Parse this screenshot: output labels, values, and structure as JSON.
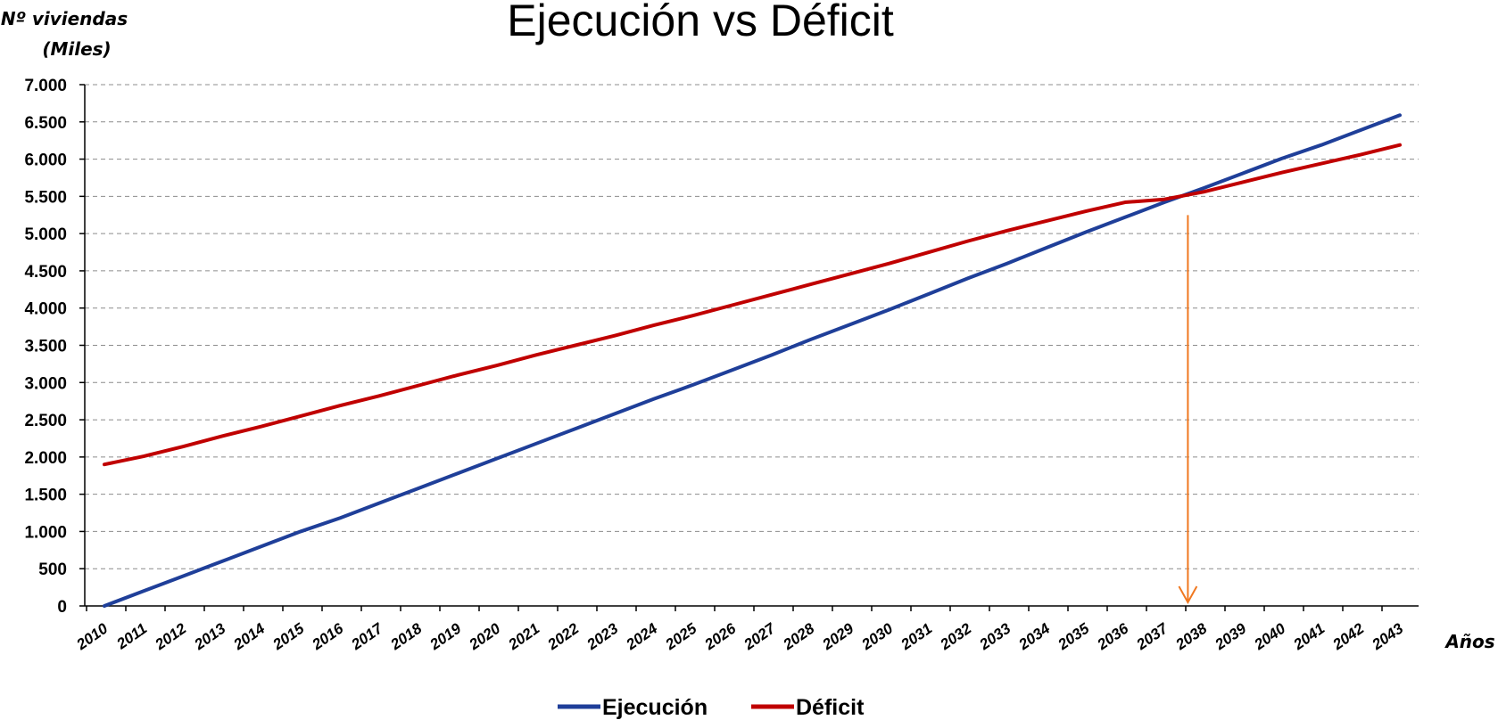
{
  "chart_data": {
    "type": "line",
    "title": "Ejecución vs Déficit",
    "ylabel_line1": "Nº viviendas",
    "ylabel_line2": "(Miles)",
    "xlabel": "Años",
    "ylim": [
      0,
      7000
    ],
    "yticks": [
      0,
      500,
      1000,
      1500,
      2000,
      2500,
      3000,
      3500,
      4000,
      4500,
      5000,
      5500,
      6000,
      6500,
      7000
    ],
    "ytick_labels": [
      "0",
      "500",
      "1.000",
      "1.500",
      "2.000",
      "2.500",
      "3.000",
      "3.500",
      "4.000",
      "4.500",
      "5.000",
      "5.500",
      "6.000",
      "6.500",
      "7.000"
    ],
    "grid": true,
    "legend_position": "bottom",
    "categories": [
      "2010",
      "2011",
      "2012",
      "2013",
      "2014",
      "2015",
      "2016",
      "2017",
      "2018",
      "2019",
      "2020",
      "2021",
      "2022",
      "2023",
      "2024",
      "2025",
      "2026",
      "2027",
      "2028",
      "2029",
      "2030",
      "2031",
      "2032",
      "2033",
      "2034",
      "2035",
      "2036",
      "2037",
      "2038",
      "2039",
      "2040",
      "2041",
      "2042",
      "2043"
    ],
    "series": [
      {
        "name": "Ejecución",
        "color": "#1f3f99",
        "values": [
          0,
          200,
          400,
          600,
          800,
          1000,
          1180,
          1380,
          1580,
          1780,
          1980,
          2180,
          2380,
          2580,
          2780,
          2970,
          3170,
          3370,
          3580,
          3780,
          3980,
          4190,
          4400,
          4600,
          4810,
          5020,
          5220,
          5420,
          5610,
          5810,
          6010,
          6190,
          6390,
          6590
        ]
      },
      {
        "name": "Déficit",
        "color": "#c00000",
        "values": [
          1900,
          2010,
          2140,
          2280,
          2410,
          2550,
          2690,
          2820,
          2960,
          3100,
          3230,
          3370,
          3500,
          3630,
          3770,
          3900,
          4040,
          4180,
          4320,
          4460,
          4600,
          4750,
          4900,
          5040,
          5170,
          5300,
          5420,
          5460,
          5560,
          5690,
          5820,
          5940,
          6060,
          6190
        ]
      }
    ],
    "annotation": {
      "type": "arrow",
      "color": "#f07820",
      "x": 2037.6,
      "from_y": 5440,
      "to_y": 0
    }
  }
}
